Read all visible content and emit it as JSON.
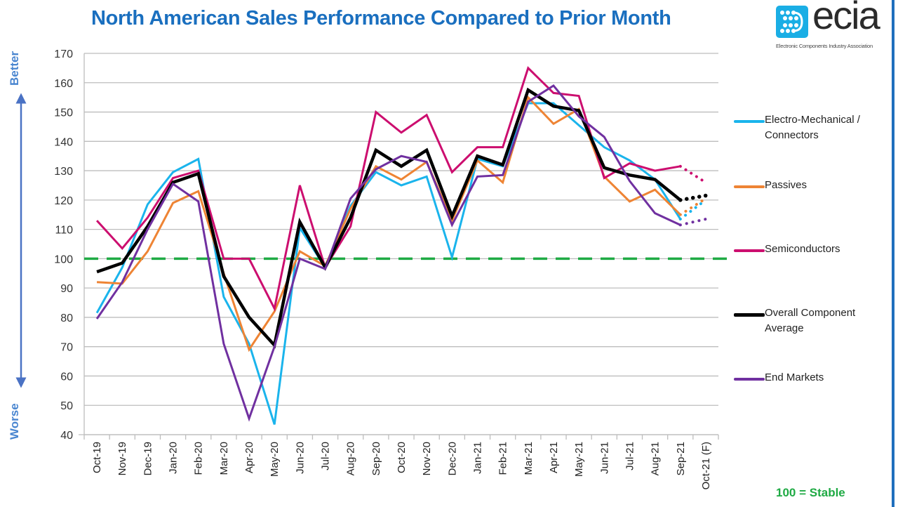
{
  "header": {
    "title": "North American Sales Performance Compared to Prior Month",
    "logo_word": "ecia",
    "logo_subtitle": "Electronic Components Industry Association"
  },
  "axis_annotations": {
    "top": "Better",
    "bottom": "Worse",
    "stable_note": "100 = Stable"
  },
  "colors": {
    "title": "#1a6fbf",
    "electro_mechanical": "#1ab4ec",
    "passives": "#ee8434",
    "semiconductors": "#cc0e6f",
    "overall": "#000000",
    "end_markets": "#7030a0",
    "stable_line": "#1faa44"
  },
  "chart_data": {
    "type": "line",
    "title": "North American Sales Performance Compared to Prior Month",
    "xlabel": "",
    "ylabel": "",
    "ylim": [
      40,
      170
    ],
    "yticks": [
      40,
      50,
      60,
      70,
      80,
      90,
      100,
      110,
      120,
      130,
      140,
      150,
      160,
      170
    ],
    "grid": true,
    "legend_position": "right",
    "reference_line": {
      "value": 100,
      "label": "100 = Stable",
      "style": "dashed"
    },
    "forecast_from_index": 23,
    "categories": [
      "Oct-19",
      "Nov-19",
      "Dec-19",
      "Jan-20",
      "Feb-20",
      "Mar-20",
      "Apr-20",
      "May-20",
      "Jun-20",
      "Jul-20",
      "Aug-20",
      "Sep-20",
      "Oct-20",
      "Nov-20",
      "Dec-20",
      "Jan-21",
      "Feb-21",
      "Mar-21",
      "Apr-21",
      "May-21",
      "Jun-21",
      "Jul-21",
      "Aug-21",
      "Sep-21",
      "Oct-21 (F)"
    ],
    "series": [
      {
        "name": "Electro-Mechanical / Connectors",
        "color": "#1ab4ec",
        "width": 3,
        "values": [
          81.5,
          97,
          118.5,
          129.5,
          134,
          87,
          71,
          43.5,
          110.5,
          97,
          118,
          129.5,
          125,
          128,
          100.5,
          134,
          131.5,
          153,
          153,
          145.5,
          138,
          133.5,
          127,
          113.5,
          120
        ]
      },
      {
        "name": "Passives",
        "color": "#ee8434",
        "width": 3,
        "values": [
          92,
          91.5,
          102.5,
          119,
          123,
          95,
          69,
          82,
          102.5,
          97.5,
          117,
          131.5,
          127,
          133,
          113,
          133.5,
          126,
          155,
          146,
          151,
          128,
          119.5,
          123.5,
          115,
          120.5
        ]
      },
      {
        "name": "Semiconductors",
        "color": "#cc0e6f",
        "width": 3,
        "values": [
          113,
          103.5,
          114,
          127.5,
          130,
          100,
          100,
          83,
          125,
          97,
          111,
          150,
          143,
          149,
          129.5,
          138,
          138,
          165,
          156.5,
          155.5,
          127.5,
          132.5,
          130,
          131.5,
          126
        ]
      },
      {
        "name": "Overall Component Average",
        "color": "#000000",
        "width": 4.5,
        "values": [
          95.5,
          98.5,
          111,
          126,
          129,
          94,
          80,
          70.5,
          112.5,
          97,
          114,
          137,
          131.5,
          137,
          114.5,
          135,
          132,
          157.5,
          152,
          150.5,
          131,
          128.5,
          127,
          120,
          121.5
        ]
      },
      {
        "name": "End Markets",
        "color": "#7030a0",
        "width": 3,
        "values": [
          79.5,
          92,
          110,
          125.5,
          119.5,
          71,
          45.5,
          70,
          100,
          96.5,
          120.5,
          130.5,
          135,
          133,
          111.5,
          128,
          128.5,
          153.5,
          159,
          148.5,
          141.5,
          126.5,
          115.5,
          111.5,
          113.5
        ]
      }
    ]
  },
  "legend": [
    {
      "label": "Electro-Mechanical / Connectors",
      "color": "#1ab4ec"
    },
    {
      "label": "Passives",
      "color": "#ee8434"
    },
    {
      "label": "Semiconductors",
      "color": "#cc0e6f"
    },
    {
      "label": "Overall Component Average",
      "color": "#000000"
    },
    {
      "label": "End Markets",
      "color": "#7030a0"
    }
  ]
}
